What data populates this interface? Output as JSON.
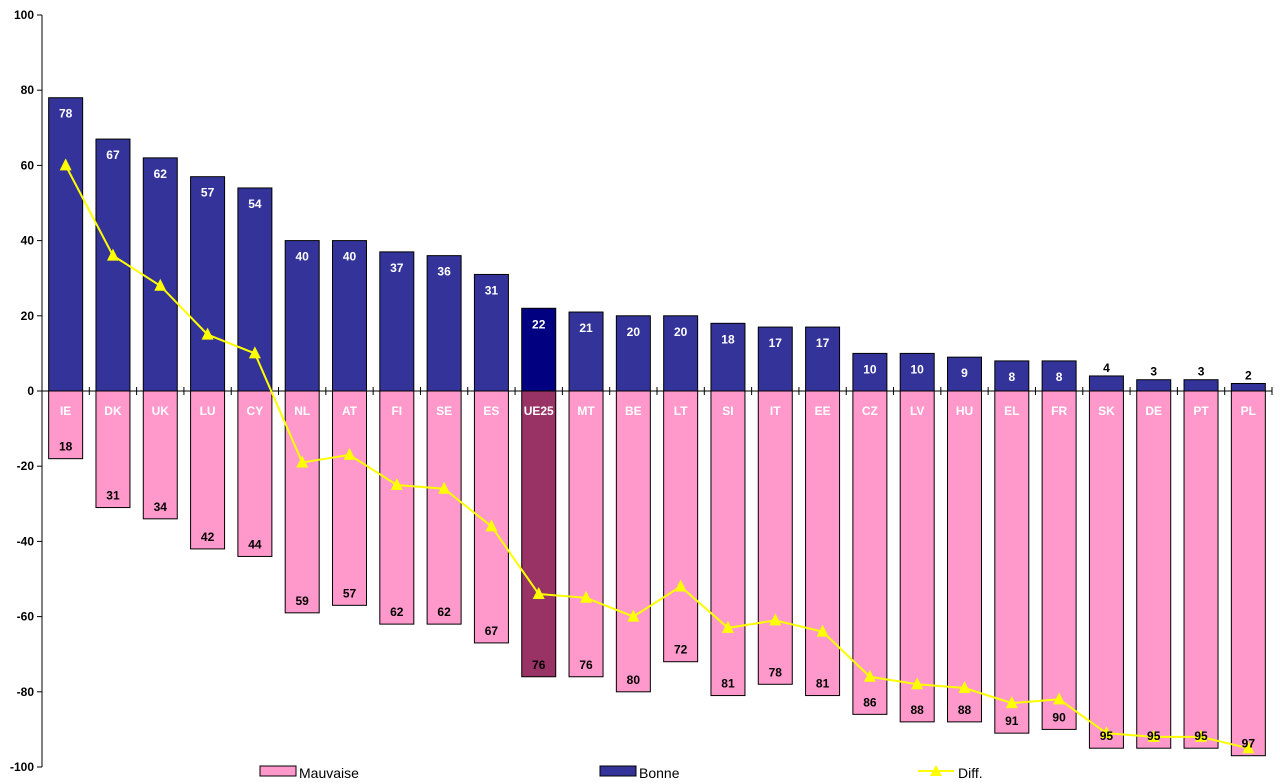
{
  "chart_data": {
    "type": "bar",
    "categories": [
      "IE",
      "DK",
      "UK",
      "LU",
      "CY",
      "NL",
      "AT",
      "FI",
      "SE",
      "ES",
      "UE25",
      "MT",
      "BE",
      "LT",
      "SI",
      "IT",
      "EE",
      "CZ",
      "LV",
      "HU",
      "EL",
      "FR",
      "SK",
      "DE",
      "PT",
      "PL"
    ],
    "highlight_category": "UE25",
    "series": [
      {
        "name": "Mauvaise",
        "color": "#ff99cc",
        "highlight_color": "#993366",
        "values": [
          18,
          31,
          34,
          42,
          44,
          59,
          57,
          62,
          62,
          67,
          76,
          76,
          80,
          72,
          81,
          78,
          81,
          86,
          88,
          88,
          91,
          90,
          95,
          95,
          95,
          97
        ]
      },
      {
        "name": "Bonne",
        "color": "#333399",
        "highlight_color": "#000080",
        "values": [
          78,
          67,
          62,
          57,
          54,
          40,
          40,
          37,
          36,
          31,
          22,
          21,
          20,
          20,
          18,
          17,
          17,
          10,
          10,
          9,
          8,
          8,
          4,
          3,
          3,
          2
        ]
      },
      {
        "name": "Diff.",
        "color": "#ffff00",
        "values": [
          60,
          36,
          28,
          15,
          10,
          -19,
          -17,
          -25,
          -26,
          -36,
          -54,
          -55,
          -60,
          -52,
          -63,
          -61,
          -64,
          -76,
          -78,
          -79,
          -83,
          -82,
          -91,
          -92,
          -92,
          -95
        ]
      }
    ],
    "yticks": [
      "100",
      "80",
      "60",
      "40",
      "20",
      "0",
      "-20",
      "-40",
      "-60",
      "-80",
      "-100"
    ],
    "ylim": [
      -100,
      100
    ]
  }
}
